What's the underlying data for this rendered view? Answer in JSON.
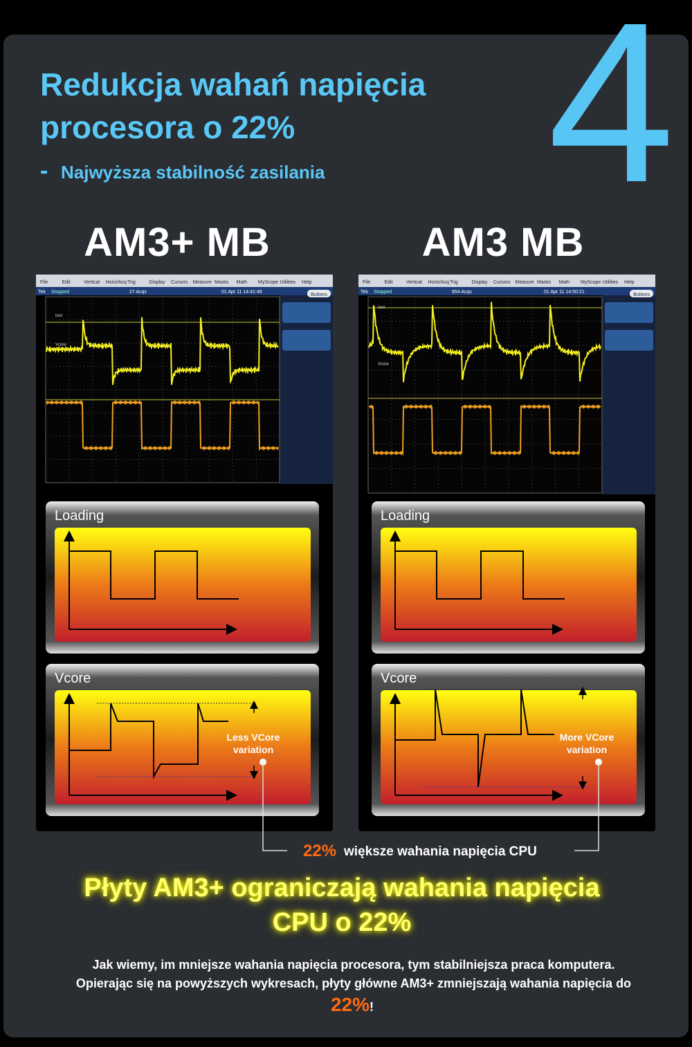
{
  "big_number": "4",
  "title": {
    "lines": [
      "Redukcja wahań napięcia",
      "procesora o 22%"
    ]
  },
  "subtitle": {
    "dash": "-",
    "text": "Najwyższa stabilność zasilania"
  },
  "scope_menu": [
    "File",
    "Edit",
    "Vertical",
    "Horiz/Acq",
    "Trig",
    "Display",
    "Cursors",
    "Measure",
    "Masks",
    "Math",
    "MyScope",
    "Utilities",
    "Help"
  ],
  "panels": [
    {
      "heading": "AM3+ MB",
      "scope": {
        "brand": "Tek",
        "state": "Stopped",
        "acqs": "27 Acqs",
        "timestamp": "01 Apr 11 14:41:48",
        "button": "Buttons",
        "channels": [
          "Iout",
          "Vcore"
        ]
      },
      "loading_label": "Loading",
      "vcore_label": "Vcore",
      "variation_note": [
        "Less VCore",
        "variation"
      ]
    },
    {
      "heading": "AM3 MB",
      "scope": {
        "brand": "Tek",
        "state": "Stopped",
        "acqs": "654 Acqs",
        "timestamp": "01 Apr 11 14:50:21",
        "button": "Buttons",
        "channels": [
          "Iout",
          "Vcore"
        ]
      },
      "loading_label": "Loading",
      "vcore_label": "Vcore",
      "variation_note": [
        "More VCore",
        "variation"
      ]
    }
  ],
  "comparison": {
    "percent": "22%",
    "text": "większe wahania napięcia CPU"
  },
  "headline": {
    "lines": [
      "Płyty AM3+ ograniczają wahania napięcia",
      "CPU o 22%"
    ]
  },
  "body": {
    "lines": [
      "Jak wiemy, im mniejsze wahania napięcia procesora, tym stabilniejsza praca komputera.",
      "Opierając się na powyższych wykresach, płyty główne AM3+ zmniejszają wahania napięcia do"
    ],
    "percent": "22%",
    "end": "!"
  }
}
